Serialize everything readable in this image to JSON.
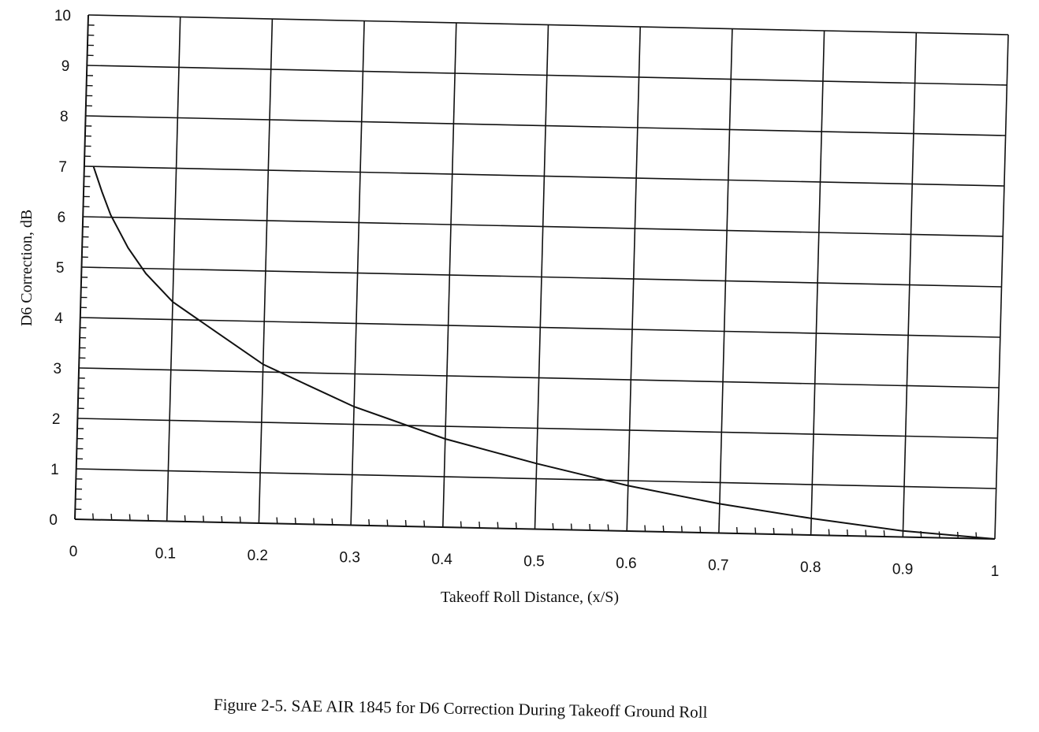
{
  "chart_data": {
    "type": "line",
    "title": "",
    "xlabel": "Takeoff Roll Distance, (x/S)",
    "ylabel": "D6 Correction, dB",
    "xlim": [
      0,
      1
    ],
    "ylim": [
      0,
      10
    ],
    "x_ticks": [
      "0",
      "0.1",
      "0.2",
      "0.3",
      "0.4",
      "0.5",
      "0.6",
      "0.7",
      "0.8",
      "0.9",
      "1"
    ],
    "y_ticks": [
      "0",
      "1",
      "2",
      "3",
      "4",
      "5",
      "6",
      "7",
      "8",
      "9",
      "10"
    ],
    "grid": true,
    "legend": "none",
    "series": [
      {
        "x": [
          0.01,
          0.02,
          0.03,
          0.05,
          0.07,
          0.1,
          0.15,
          0.2,
          0.25,
          0.3,
          0.35,
          0.4,
          0.5,
          0.6,
          0.7,
          0.8,
          0.9,
          1.0
        ],
        "y": [
          7.0,
          6.5,
          6.05,
          5.4,
          4.9,
          4.35,
          3.75,
          3.15,
          2.75,
          2.35,
          2.05,
          1.75,
          1.3,
          0.9,
          0.58,
          0.33,
          0.12,
          0.0
        ]
      }
    ]
  },
  "caption": "Figure 2-5.  SAE AIR 1845 for D6 Correction During Takeoff Ground Roll"
}
